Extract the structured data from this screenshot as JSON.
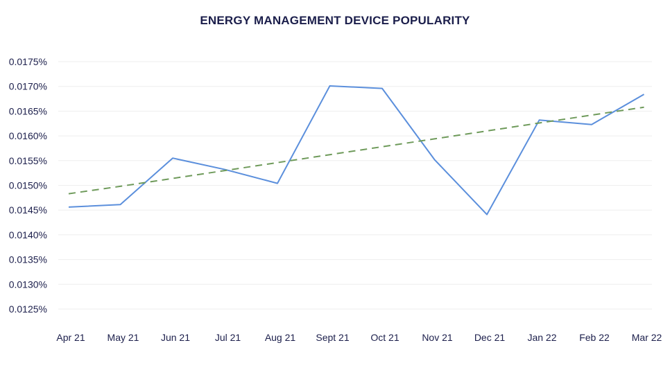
{
  "chart_data": {
    "type": "line",
    "title": "ENERGY MANAGEMENT DEVICE POPULARITY",
    "categories": [
      "Apr 21",
      "May 21",
      "Jun 21",
      "Jul 21",
      "Aug 21",
      "Sept 21",
      "Oct 21",
      "Nov 21",
      "Dec 21",
      "Jan 22",
      "Feb 22",
      "Mar 22"
    ],
    "y_ticks": [
      "0.0125%",
      "0.0130%",
      "0.0135%",
      "0.0140%",
      "0.0145%",
      "0.0150%",
      "0.0155%",
      "0.0160%",
      "0.0165%",
      "0.0170%",
      "0.0175%"
    ],
    "ylim": [
      0.0125,
      0.0175
    ],
    "y_unit": "%",
    "grid": true,
    "series": [
      {
        "type": "line",
        "style": "solid",
        "color": "#5b8fdc",
        "values": [
          0.01456,
          0.01461,
          0.01555,
          0.01532,
          0.01504,
          0.01701,
          0.01696,
          0.01552,
          0.01441,
          0.01632,
          0.01623,
          0.01684
        ]
      },
      {
        "type": "trendline",
        "style": "dashed",
        "color": "#6e9a5a",
        "values": [
          0.01483,
          0.01498,
          0.01514,
          0.0153,
          0.01546,
          0.01562,
          0.01578,
          0.01594,
          0.0161,
          0.01626,
          0.01642,
          0.01658
        ]
      }
    ]
  }
}
